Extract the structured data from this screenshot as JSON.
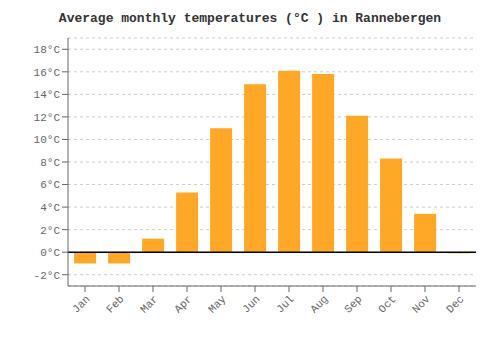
{
  "chart_data": {
    "type": "bar",
    "title": "Average monthly temperatures (°C ) in Rannebergen",
    "categories": [
      "Jan",
      "Feb",
      "Mar",
      "Apr",
      "May",
      "Jun",
      "Jul",
      "Aug",
      "Sep",
      "Oct",
      "Nov",
      "Dec"
    ],
    "values": [
      -1.0,
      -1.0,
      1.2,
      5.3,
      11.0,
      14.9,
      16.1,
      15.8,
      12.1,
      8.3,
      3.4,
      -0.1
    ],
    "color": "#FFA726",
    "ylim": [
      -3,
      19
    ],
    "yticks": [
      {
        "value": -2,
        "label": "-2°C"
      },
      {
        "value": 0,
        "label": "0°C"
      },
      {
        "value": 2,
        "label": "2°C"
      },
      {
        "value": 4,
        "label": "4°C"
      },
      {
        "value": 6,
        "label": "6°C"
      },
      {
        "value": 8,
        "label": "8°C"
      },
      {
        "value": 10,
        "label": "10°C"
      },
      {
        "value": 12,
        "label": "12°C"
      },
      {
        "value": 14,
        "label": "14°C"
      },
      {
        "value": 16,
        "label": "16°C"
      },
      {
        "value": 18,
        "label": "18°C"
      }
    ],
    "grid": true
  }
}
